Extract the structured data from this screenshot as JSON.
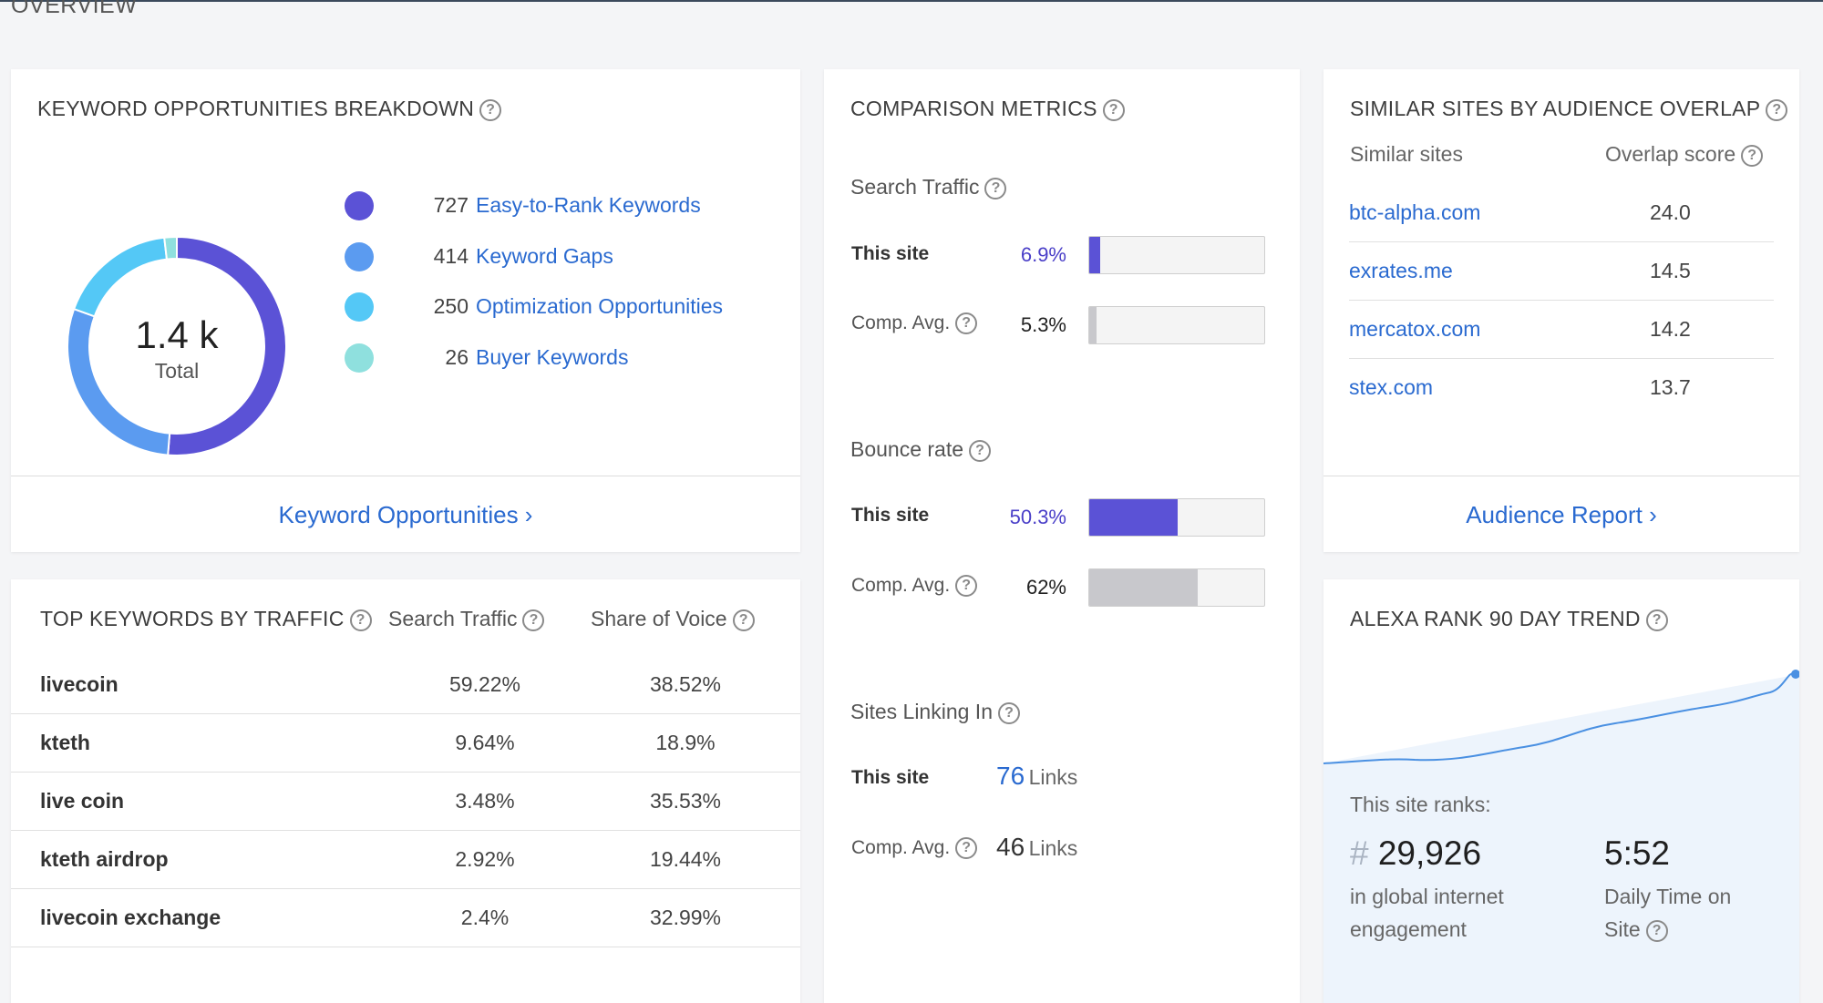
{
  "page": {
    "section_title": "OVERVIEW"
  },
  "keyword_breakdown": {
    "title": "KEYWORD OPPORTUNITIES BREAKDOWN",
    "total_value": "1.4 k",
    "total_label": "Total",
    "items": [
      {
        "count": "727",
        "label": "Easy-to-Rank Keywords",
        "color": "#5b52d6",
        "value": 727
      },
      {
        "count": "414",
        "label": "Keyword Gaps",
        "color": "#5b9bf0",
        "value": 414
      },
      {
        "count": "250",
        "label": "Optimization Opportunities",
        "color": "#54c8f6",
        "value": 250
      },
      {
        "count": "26",
        "label": "Buyer Keywords",
        "color": "#8fe0de",
        "value": 26
      }
    ],
    "footer_link": "Keyword Opportunities ›"
  },
  "top_keywords": {
    "title": "TOP KEYWORDS BY TRAFFIC",
    "col_traffic": "Search Traffic",
    "col_sov": "Share of Voice",
    "rows": [
      {
        "keyword": "livecoin",
        "traffic": "59.22%",
        "sov": "38.52%"
      },
      {
        "keyword": "kteth",
        "traffic": "9.64%",
        "sov": "18.9%"
      },
      {
        "keyword": "live coin",
        "traffic": "3.48%",
        "sov": "35.53%"
      },
      {
        "keyword": "kteth airdrop",
        "traffic": "2.92%",
        "sov": "19.44%"
      },
      {
        "keyword": "livecoin exchange",
        "traffic": "2.4%",
        "sov": "32.99%"
      }
    ]
  },
  "comparison": {
    "title": "COMPARISON METRICS",
    "search_traffic": {
      "label": "Search Traffic",
      "site_label": "This site",
      "site_value": "6.9%",
      "site_fill": 0.06,
      "avg_label": "Comp. Avg.",
      "avg_value": "5.3%",
      "avg_fill": 0.04
    },
    "bounce": {
      "label": "Bounce rate",
      "site_label": "This site",
      "site_value": "50.3%",
      "site_fill": 0.503,
      "avg_label": "Comp. Avg.",
      "avg_value": "62%",
      "avg_fill": 0.62
    },
    "linking": {
      "label": "Sites Linking In",
      "site_label": "This site",
      "site_value": "76",
      "site_unit": "Links",
      "avg_label": "Comp. Avg.",
      "avg_value": "46",
      "avg_unit": "Links"
    },
    "colors": {
      "site_bar": "#5b52d6",
      "avg_bar": "#c8c8cc",
      "site_text": "#4a3fc8"
    }
  },
  "similar_sites": {
    "title": "SIMILAR SITES BY AUDIENCE OVERLAP",
    "col_sites": "Similar sites",
    "col_score": "Overlap score",
    "rows": [
      {
        "site": "btc-alpha.com",
        "score": "24.0"
      },
      {
        "site": "exrates.me",
        "score": "14.5"
      },
      {
        "site": "mercatox.com",
        "score": "14.2"
      },
      {
        "site": "stex.com",
        "score": "13.7"
      }
    ],
    "footer_link": "Audience Report ›"
  },
  "alexa": {
    "title": "ALEXA RANK 90 DAY TREND",
    "ranks_label": "This site ranks:",
    "hash": "#",
    "rank": "29,926",
    "rank_desc": "in global internet engagement",
    "time": "5:52",
    "time_desc": "Daily Time on Site",
    "trend_color": "#4a90e2",
    "panel_color": "#edf4fc"
  }
}
